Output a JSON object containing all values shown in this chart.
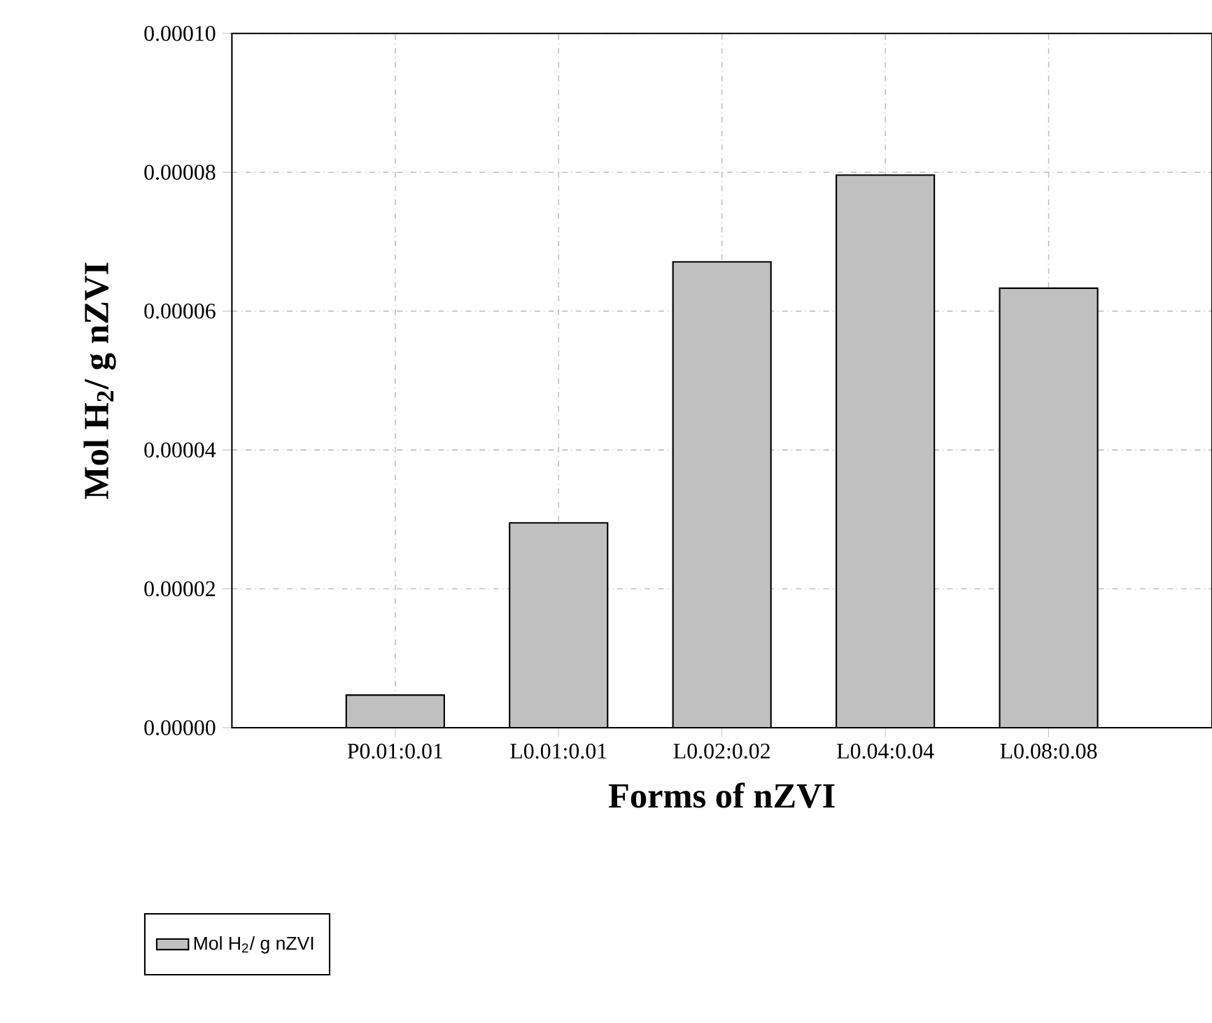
{
  "chart_data": {
    "type": "bar",
    "xlabel": "Forms of nZVI",
    "ylabel": "Mol H$_{2}$/ g nZVI",
    "categories": [
      "P0.01:0.01",
      "L0.01:0.01",
      "L0.02:0.02",
      "L0.04:0.04",
      "L0.08:0.08"
    ],
    "series": [
      {
        "name": "Mol H$_{2}$/ g nZVI",
        "color": "#c0c0c0",
        "values": [
          4.7e-06,
          2.95e-05,
          6.71e-05,
          7.96e-05,
          6.33e-05
        ]
      }
    ],
    "ylim": [
      0,
      0.0001
    ],
    "yticks": [
      {
        "value": 0,
        "label": "0.00000"
      },
      {
        "value": 2e-05,
        "label": "0.00002"
      },
      {
        "value": 4e-05,
        "label": "0.00004"
      },
      {
        "value": 6e-05,
        "label": "0.00006"
      },
      {
        "value": 8e-05,
        "label": "0.00008"
      },
      {
        "value": 0.0001,
        "label": "0.00010"
      }
    ],
    "grid": true,
    "legend": "bottom left"
  }
}
